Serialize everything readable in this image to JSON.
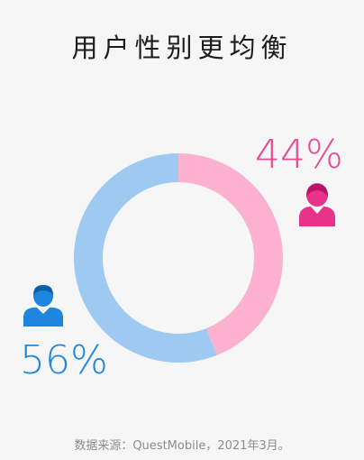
{
  "title": "用户性别更均衡",
  "chart_data": {
    "type": "pie",
    "style": "donut",
    "title": "用户性别更均衡",
    "categories": [
      "女性",
      "男性"
    ],
    "values": [
      44,
      56
    ],
    "labels": [
      "44%",
      "56%"
    ],
    "colors": [
      "#fbb1cf",
      "#9ec9f1"
    ]
  },
  "icons": {
    "female": "female-user-icon",
    "male": "male-user-icon"
  },
  "icon_colors": {
    "female": "#e8338a",
    "male": "#1e86de"
  },
  "source": "数据来源：QuestMobile，2021年3月。"
}
